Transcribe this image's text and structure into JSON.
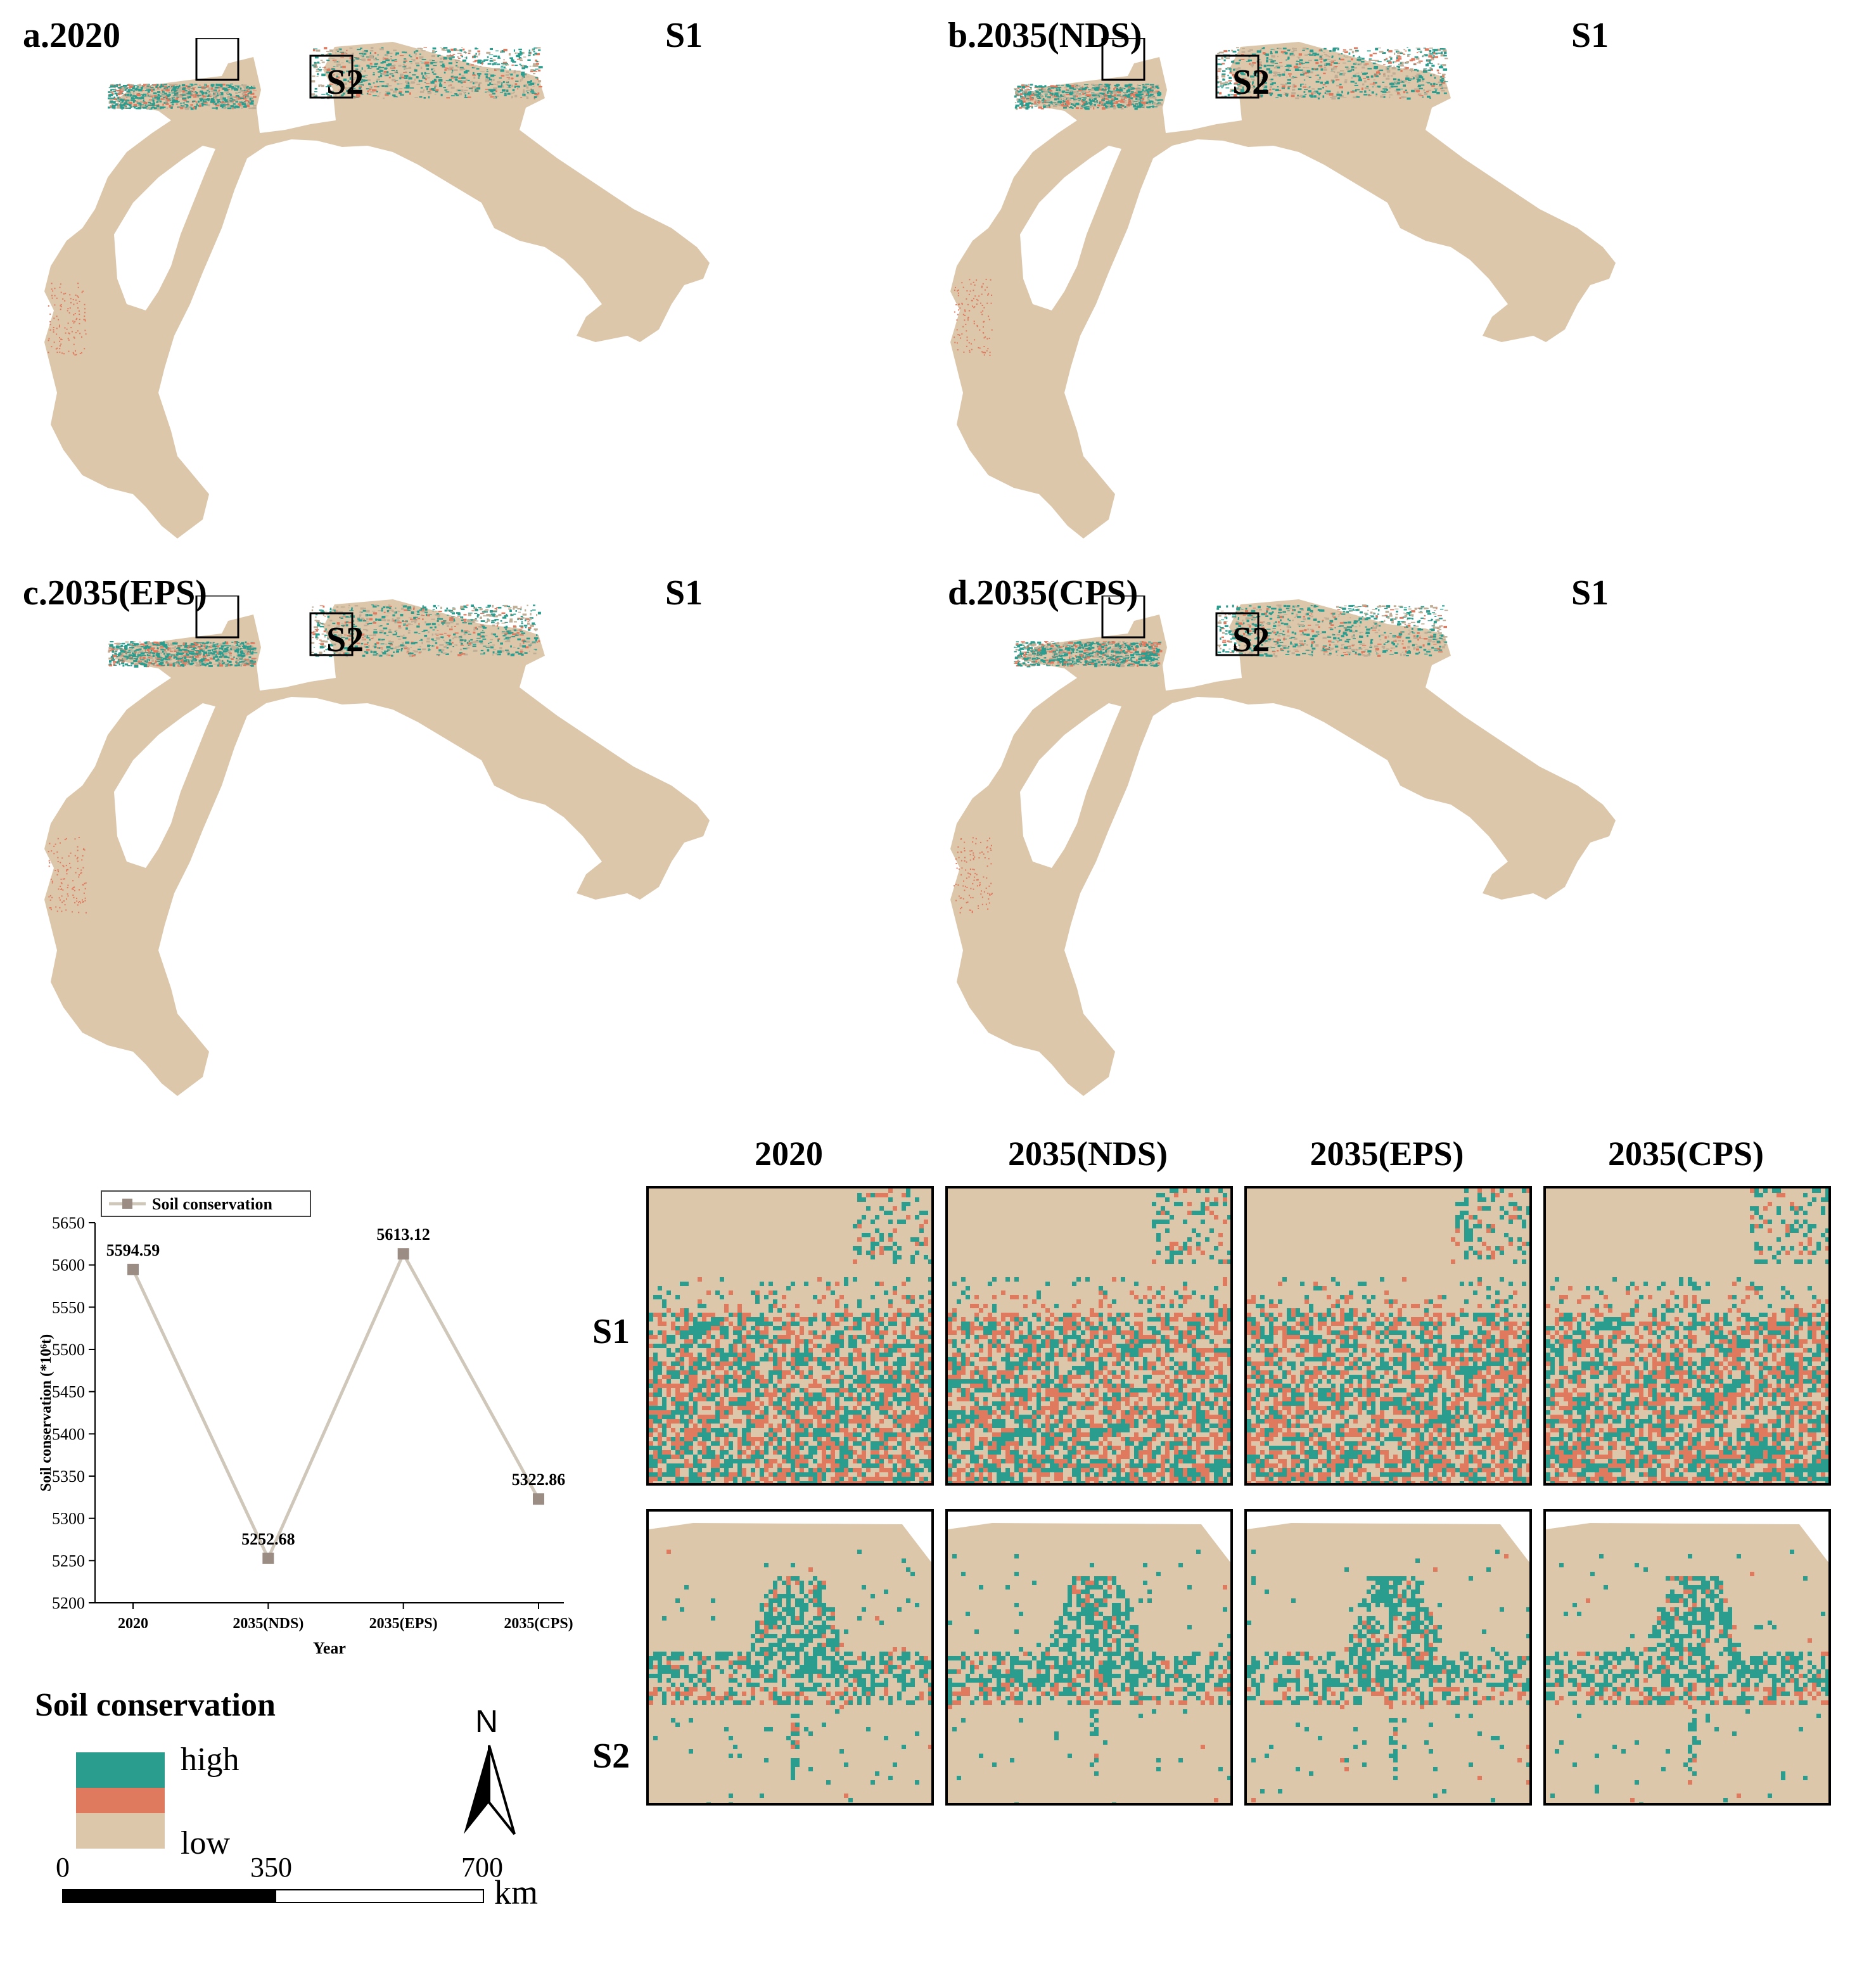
{
  "maps": {
    "panels": [
      {
        "label": "a.2020"
      },
      {
        "label": "b.2035(NDS)"
      },
      {
        "label": "c.2035(EPS)"
      },
      {
        "label": "d.2035(CPS)"
      }
    ],
    "subregion_labels": {
      "s1": "S1",
      "s2": "S2"
    }
  },
  "zoom": {
    "columns": [
      "2020",
      "2035(NDS)",
      "2035(EPS)",
      "2035(CPS)"
    ],
    "rows": [
      "S1",
      "S2"
    ]
  },
  "chart_data": {
    "type": "line",
    "categories": [
      "2020",
      "2035(NDS)",
      "2035(EPS)",
      "2035(CPS)"
    ],
    "series": [
      {
        "name": "Soil conservation",
        "values": [
          5594.59,
          5252.68,
          5613.12,
          5322.86
        ]
      }
    ],
    "data_labels": [
      "5594.59",
      "5252.68",
      "5613.12",
      "5322.86"
    ],
    "xlabel": "Year",
    "ylabel": "Soil conservation (*10⁶t)",
    "ylim": [
      5200,
      5650
    ],
    "yticks": [
      5200,
      5250,
      5300,
      5350,
      5400,
      5450,
      5500,
      5550,
      5600,
      5650
    ],
    "legend": "top-left",
    "grid": false
  },
  "legend": {
    "title": "Soil conservation",
    "high": "high",
    "low": "low",
    "colors": {
      "high": "#2a9d8f",
      "mid": "#e07a5f",
      "low": "#dcc7ab"
    }
  },
  "north_arrow": {
    "label": "N"
  },
  "scale_bar": {
    "labels": [
      "0",
      "350",
      "700"
    ],
    "unit": "km"
  }
}
